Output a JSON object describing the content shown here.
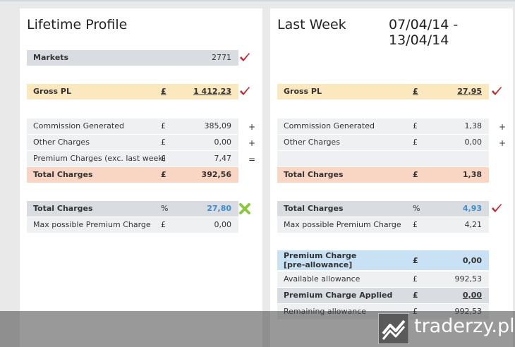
{
  "left": {
    "title": "Lifetime Profile",
    "markets": {
      "label": "Markets",
      "value": "2771"
    },
    "gross_pl": {
      "label": "Gross PL",
      "currency": "£",
      "value": "1 412,23"
    },
    "commission": {
      "label": "Commission Generated",
      "currency": "£",
      "value": "385,09",
      "sign": "+"
    },
    "other_charges": {
      "label": "Other Charges",
      "currency": "£",
      "value": "0,00",
      "sign": "+"
    },
    "premium_charges": {
      "label": "Premium Charges (exc. last week)",
      "currency": "£",
      "value": "7,47",
      "sign": "="
    },
    "total_charges": {
      "label": "Total Charges",
      "currency": "£",
      "value": "392,56"
    },
    "total_charges_pct": {
      "label": "Total Charges",
      "unit": "%",
      "value": "27,80"
    },
    "max_premium": {
      "label": "Max possible Premium Charge",
      "currency": "£",
      "value": "0,00"
    }
  },
  "right": {
    "title": "Last Week",
    "date_range": "07/04/14 - 13/04/14",
    "gross_pl": {
      "label": "Gross PL",
      "currency": "£",
      "value": "27,95"
    },
    "commission": {
      "label": "Commission Generated",
      "currency": "£",
      "value": "1,38",
      "sign": "+"
    },
    "other_charges": {
      "label": "Other Charges",
      "currency": "£",
      "value": "0,00",
      "sign": "+"
    },
    "total_charges": {
      "label": "Total Charges",
      "currency": "£",
      "value": "1,38"
    },
    "total_charges_pct": {
      "label": "Total Charges",
      "unit": "%",
      "value": "4,93"
    },
    "max_premium": {
      "label": "Max possible Premium Charge",
      "currency": "£",
      "value": "4,21"
    },
    "premium_pre": {
      "label_line1": "Premium Charge",
      "label_line2": "[pre-allowance]",
      "currency": "£",
      "value": "0,00"
    },
    "available_allowance": {
      "label": "Available allowance",
      "currency": "£",
      "value": "992,53"
    },
    "premium_applied": {
      "label": "Premium Charge Applied",
      "currency": "£",
      "value": "0,00"
    },
    "remaining_allowance": {
      "label": "Remaining allowance",
      "currency": "£",
      "value": "992,53"
    }
  },
  "icons": {
    "check": "check-icon",
    "cross": "cross-icon"
  },
  "colors": {
    "check": "#c8232c",
    "cross": "#8dc63f",
    "pct_value": "#3a8cd0"
  },
  "watermark": {
    "text": "traderzy.pl"
  }
}
